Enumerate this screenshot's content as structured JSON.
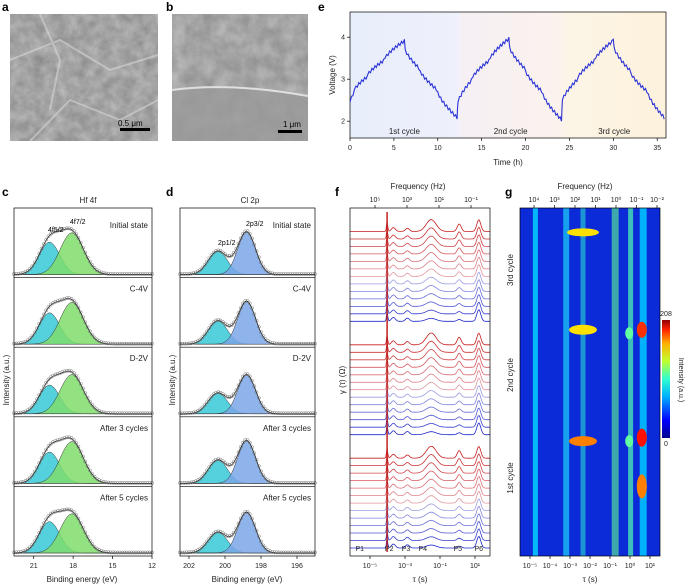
{
  "panels": {
    "a": "a",
    "b": "b",
    "c": "c",
    "d": "d",
    "e": "e",
    "f": "f",
    "g": "g"
  },
  "sem": {
    "a": {
      "scale": "0.5 μm"
    },
    "b": {
      "scale": "1 μm"
    }
  },
  "hf": {
    "title": "Hf 4f",
    "peak1": "4f5/2",
    "peak2": "4f7/2",
    "states": [
      "Initial state",
      "C-4V",
      "D-2V",
      "After 3 cycles",
      "After 5 cycles"
    ],
    "xticks": [
      "21",
      "18",
      "15",
      "12"
    ],
    "xlabel": "Binding energy (eV)",
    "ylabel": "Intensity (a.u.)"
  },
  "cl": {
    "title": "Cl 2p",
    "peak1": "2p1/2",
    "peak2": "2p3/2",
    "states": [
      "Initial state",
      "C-4V",
      "D-2V",
      "After 3 cycles",
      "After 5 cycles"
    ],
    "xticks": [
      "202",
      "200",
      "198",
      "196"
    ],
    "xlabel": "Binding energy (eV)",
    "ylabel": "Intensity (a.u.)"
  },
  "colors": {
    "curve": "#3b3fd0",
    "cyan": "#36c9d6",
    "green": "#7fdd6c",
    "blue": "#7aa7e8",
    "red": "#cc2020"
  },
  "chart_data": [
    {
      "panel": "e",
      "type": "line",
      "xlabel": "Time (h)",
      "ylabel": "Voltage (V)",
      "xlim": [
        0,
        36
      ],
      "ylim": [
        1.6,
        4.6
      ],
      "xticks": [
        "0",
        "5",
        "10",
        "15",
        "20",
        "25",
        "30",
        "35"
      ],
      "yticks": [
        "2",
        "3",
        "4"
      ],
      "cycles": [
        "1st cycle",
        "2nd cycle",
        "3rd cycle"
      ],
      "cycle_bounds": [
        [
          0,
          12.4
        ],
        [
          12.4,
          24.2
        ],
        [
          24.2,
          36
        ]
      ],
      "series": [
        {
          "x": [
            0,
            0.5,
            2,
            4,
            6.2,
            6.3,
            8,
            10,
            12.2,
            12.3,
            14,
            16,
            18.1,
            18.2,
            20,
            22,
            24.1,
            24.2,
            26,
            28,
            30,
            30.1,
            32,
            34,
            35.8
          ],
          "values": [
            2.45,
            2.75,
            3.1,
            3.5,
            3.95,
            3.7,
            3.2,
            2.7,
            2.05,
            2.45,
            3.05,
            3.5,
            4.0,
            3.75,
            3.2,
            2.65,
            2.0,
            2.5,
            3.05,
            3.5,
            3.95,
            3.75,
            3.15,
            2.65,
            2.05
          ]
        }
      ]
    },
    {
      "panel": "c",
      "type": "line",
      "title": "Hf 4f",
      "xlabel": "Binding energy (eV)",
      "ylabel": "Intensity (a.u.)",
      "xlim": [
        22.5,
        12
      ],
      "series": [
        {
          "name": "4f5/2",
          "center": 19.8,
          "height": [
            0.62,
            0.6,
            0.55,
            0.6,
            0.6
          ]
        },
        {
          "name": "4f7/2",
          "center": 18.1,
          "height": [
            0.8,
            0.8,
            0.75,
            0.8,
            0.75
          ]
        }
      ]
    },
    {
      "panel": "d",
      "type": "line",
      "title": "Cl 2p",
      "xlabel": "Binding energy (eV)",
      "ylabel": "Intensity (a.u.)",
      "xlim": [
        202.5,
        195
      ],
      "series": [
        {
          "name": "2p1/2",
          "center": 200.4,
          "height": [
            0.45,
            0.45,
            0.4,
            0.45,
            0.4
          ]
        },
        {
          "name": "2p3/2",
          "center": 198.8,
          "height": [
            0.82,
            0.82,
            0.75,
            0.82,
            0.78
          ]
        }
      ]
    },
    {
      "panel": "f",
      "type": "line",
      "xlabel": "τ (s)",
      "ylabel": "γ (τ) (Ω)",
      "x2label": "Frequency (Hz)",
      "xticks": [
        "10⁻⁵",
        "10⁻³",
        "10⁻¹",
        "10¹"
      ],
      "x2ticks": [
        "10⁵",
        "10³",
        "10¹",
        "10⁻¹"
      ],
      "peaks": [
        "P1",
        "P2",
        "P3",
        "P4",
        "P5",
        "P6"
      ],
      "blocks": 3,
      "curves_per_block": 13
    },
    {
      "panel": "g",
      "type": "heatmap",
      "xlabel": "τ (s)",
      "x2label": "Frequency (Hz)",
      "colorbar_label": "Intensity (a.u.)",
      "colorbar_range": [
        "0",
        "208"
      ],
      "xticks": [
        "10⁻⁵",
        "10⁻⁴",
        "10⁻³",
        "10⁻²",
        "10⁻¹",
        "10⁰",
        "10¹"
      ],
      "x2ticks": [
        "10⁴",
        "10³",
        "10²",
        "10¹",
        "10⁰",
        "10⁻¹",
        "10⁻²"
      ],
      "ycycles": [
        "1st cycle",
        "2nd cycle",
        "3rd cycle"
      ]
    }
  ]
}
